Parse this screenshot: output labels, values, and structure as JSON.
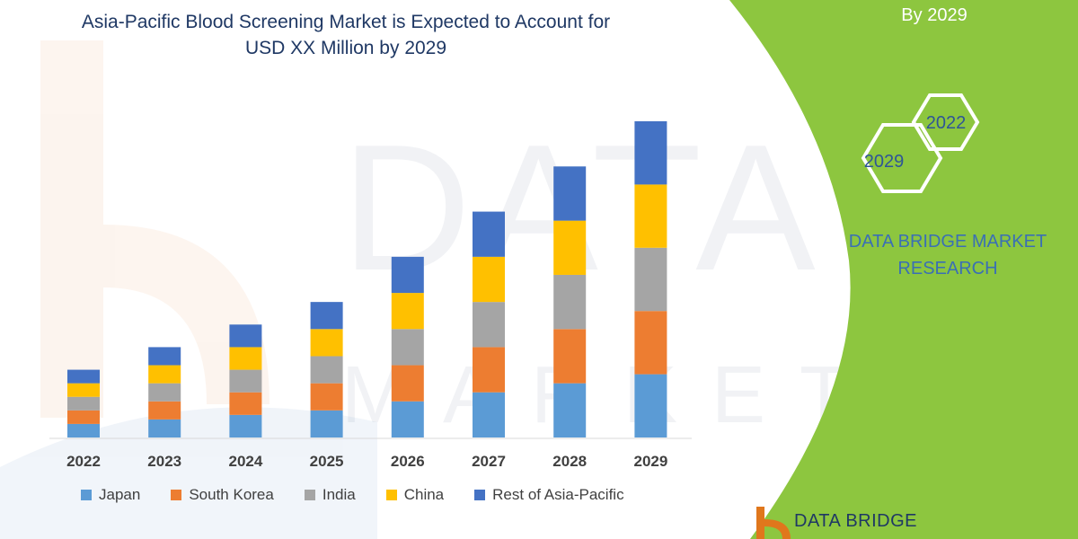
{
  "header": {
    "title_line1": "Asia-Pacific Blood Screening Market is Expected to Account for",
    "title_line2": "USD XX Million by 2029",
    "right_top_text": "By 2029"
  },
  "badges": {
    "hex_top": "2022",
    "hex_bottom": "2029"
  },
  "brand": {
    "line1": "DATA BRIDGE MARKET",
    "line2": "RESEARCH",
    "logo_text": "DATA BRIDGE"
  },
  "colors": {
    "panel_green": "#8dc63f",
    "title_blue": "#1f3864",
    "brand_blue": "#3a6fb5"
  },
  "chart_data": {
    "type": "bar",
    "stacked": true,
    "categories": [
      "2022",
      "2023",
      "2024",
      "2025",
      "2026",
      "2027",
      "2028",
      "2029"
    ],
    "series": [
      {
        "name": "Japan",
        "color": "#5b9bd5",
        "values": [
          15,
          20,
          25,
          30,
          40,
          50,
          60,
          70
        ]
      },
      {
        "name": "South Korea",
        "color": "#ed7d31",
        "values": [
          15,
          20,
          25,
          30,
          40,
          50,
          60,
          70
        ]
      },
      {
        "name": "India",
        "color": "#a5a5a5",
        "values": [
          15,
          20,
          25,
          30,
          40,
          50,
          60,
          70
        ]
      },
      {
        "name": "China",
        "color": "#ffc000",
        "values": [
          15,
          20,
          25,
          30,
          40,
          50,
          60,
          70
        ]
      },
      {
        "name": "Rest of Asia-Pacific",
        "color": "#4472c4",
        "values": [
          15,
          20,
          25,
          30,
          40,
          50,
          60,
          70
        ]
      }
    ],
    "title": "Asia-Pacific Blood Screening Market is Expected to Account for USD XX Million by 2029",
    "ylim": [
      0,
      350
    ],
    "grid": false,
    "legend_position": "bottom"
  }
}
